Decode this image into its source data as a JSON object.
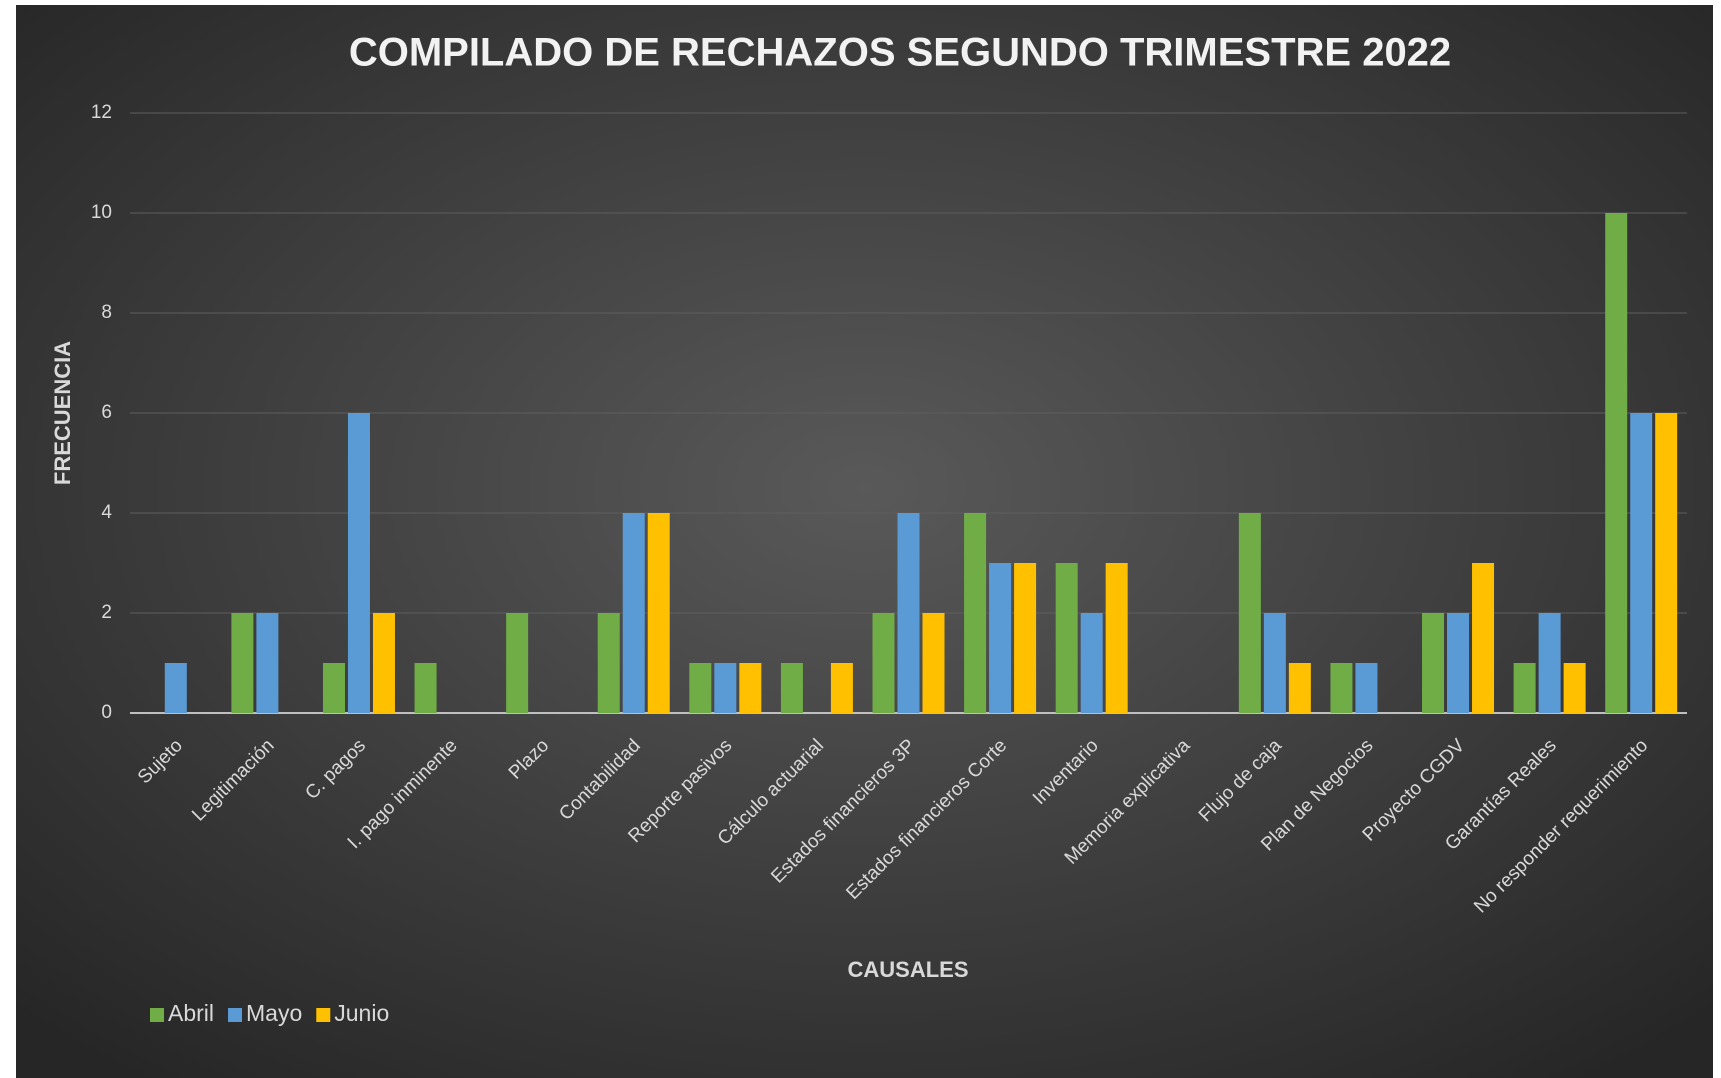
{
  "chart_data": {
    "type": "bar",
    "title": "COMPILADO DE RECHAZOS SEGUNDO TRIMESTRE 2022",
    "xlabel": "CAUSALES",
    "ylabel": "FRECUENCIA",
    "categories": [
      "Sujeto",
      "Legitimación",
      "C. pagos",
      "I. pago inminente",
      "Plazo",
      "Contabilidad",
      "Reporte pasivos",
      "Cálculo actuarial",
      "Estados financieros 3P",
      "Estados financieros Corte",
      "Inventario",
      "Memoria explicativa",
      "Flujo de caja",
      "Plan de Negocios",
      "Proyecto CGDV",
      "Garantías Reales",
      "No responder requerimiento"
    ],
    "series": [
      {
        "name": "Abril",
        "color": "#70ad47",
        "values": [
          0,
          2,
          1,
          1,
          2,
          2,
          1,
          1,
          2,
          4,
          3,
          0,
          4,
          1,
          2,
          1,
          10
        ]
      },
      {
        "name": "Mayo",
        "color": "#5b9bd5",
        "values": [
          1,
          2,
          6,
          0,
          0,
          4,
          1,
          0,
          4,
          3,
          2,
          0,
          2,
          1,
          2,
          2,
          6
        ]
      },
      {
        "name": "Junio",
        "color": "#ffc000",
        "values": [
          0,
          0,
          2,
          0,
          0,
          4,
          1,
          1,
          2,
          3,
          3,
          0,
          1,
          0,
          3,
          1,
          6
        ]
      }
    ],
    "ylim": [
      0,
      12
    ],
    "yticks": [
      0,
      2,
      4,
      6,
      8,
      10,
      12
    ],
    "grid": true,
    "legend": "bottom-left"
  }
}
